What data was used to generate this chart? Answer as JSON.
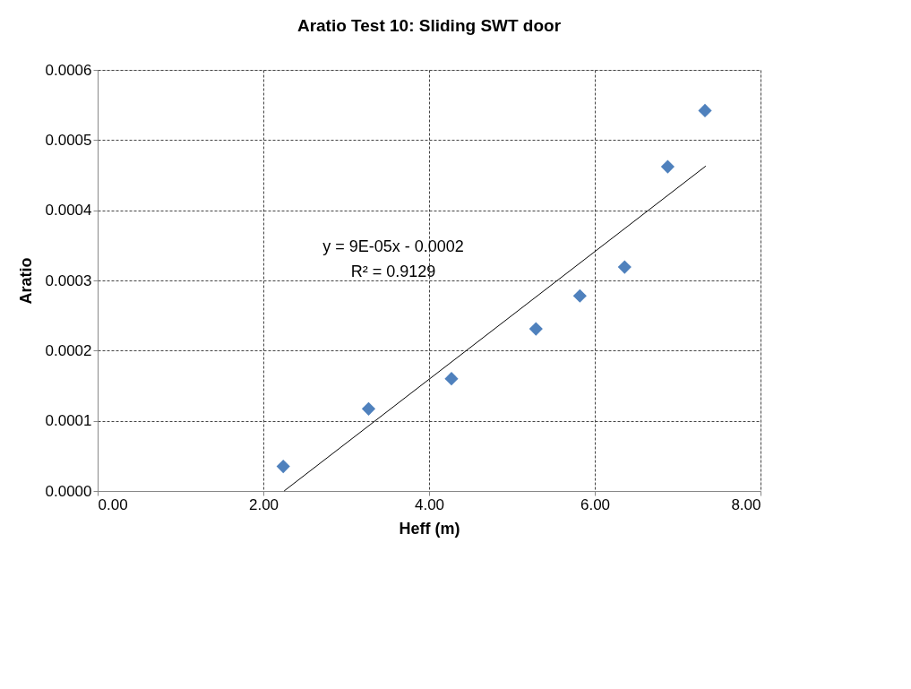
{
  "chart_data": {
    "type": "scatter",
    "title": "Aratio Test 10: Sliding SWT door",
    "xlabel": "Heff (m)",
    "ylabel": "Aratio",
    "x": [
      2.24,
      3.27,
      4.27,
      5.29,
      5.82,
      6.36,
      6.88,
      7.33
    ],
    "series": [
      {
        "color": "#4f81bd",
        "marker": "diamond",
        "values": [
          3.5e-05,
          0.000117,
          0.00016,
          0.000231,
          0.000278,
          0.000319,
          0.000462,
          0.000542
        ]
      },
      {
        "type": "line",
        "color": "#000000",
        "marker": "none",
        "line_style": "solid",
        "x": [
          2.25,
          7.34
        ],
        "values": [
          0.0,
          0.000463
        ]
      }
    ],
    "annotations": [
      "y = 9E-05x - 0.0002",
      "R² = 0.9129"
    ],
    "xlim": [
      0,
      8
    ],
    "ylim": [
      0,
      0.0006
    ],
    "xticks": [
      {
        "value": 0,
        "label": "0.00"
      },
      {
        "value": 2,
        "label": "2.00"
      },
      {
        "value": 4,
        "label": "4.00"
      },
      {
        "value": 6,
        "label": "6.00"
      },
      {
        "value": 8,
        "label": "8.00"
      }
    ],
    "yticks": [
      {
        "value": 0,
        "label": "0.0000"
      },
      {
        "value": 0.0001,
        "label": "0.0001"
      },
      {
        "value": 0.0002,
        "label": "0.0002"
      },
      {
        "value": 0.0003,
        "label": "0.0003"
      },
      {
        "value": 0.0004,
        "label": "0.0004"
      },
      {
        "value": 0.0005,
        "label": "0.0005"
      },
      {
        "value": 0.0006,
        "label": "0.0006"
      }
    ],
    "grid": true
  }
}
